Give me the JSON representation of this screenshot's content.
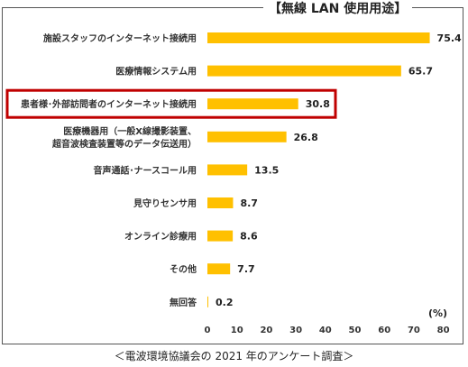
{
  "chart_data": {
    "type": "bar",
    "orientation": "horizontal",
    "title": "【無線 LAN 使用用途】",
    "categories": [
      [
        "施設スタッフのインターネット接続用"
      ],
      [
        "医療情報システム用"
      ],
      [
        "患者様･外部訪問者のインターネット接続用"
      ],
      [
        "医療機器用（一般X線撮影装置、",
        "超音波検査装置等のデータ伝送用）"
      ],
      [
        "音声通話･ナースコール用"
      ],
      [
        "見守りセンサ用"
      ],
      [
        "オンライン診療用"
      ],
      [
        "その他"
      ],
      [
        "無回答"
      ]
    ],
    "values": [
      75.4,
      65.7,
      30.8,
      26.8,
      13.5,
      8.7,
      8.6,
      7.7,
      0.2
    ],
    "value_labels": [
      "75.4",
      "65.7",
      "30.8",
      "26.8",
      "13.5",
      "8.7",
      "8.6",
      "7.7",
      "0.2"
    ],
    "highlighted_category_index": 2,
    "xlim": [
      0,
      80
    ],
    "xticks": [
      0,
      10,
      20,
      30,
      40,
      50,
      60,
      70,
      80
    ],
    "x_unit": "(%)",
    "grid": false,
    "bar_color": "#FFC000",
    "highlight_border_color": "#C00000"
  },
  "source_note": "＜電波環境協議会の 2021 年のアンケート調査＞"
}
